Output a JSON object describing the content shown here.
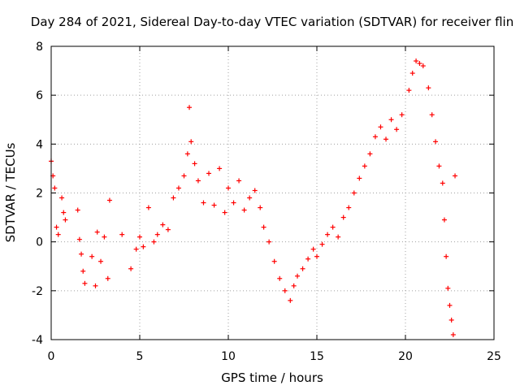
{
  "chart_data": {
    "type": "scatter",
    "title": "Day 284 of 2021, Sidereal Day-to-day VTEC variation (SDTVAR) for receiver flin",
    "xlabel": "GPS time / hours",
    "ylabel": "SDTVAR / TECUs",
    "xlim": [
      0,
      25
    ],
    "ylim": [
      -4,
      8
    ],
    "x_ticks": [
      "0",
      "5",
      "10",
      "15",
      "20",
      "25"
    ],
    "y_ticks": [
      "-4",
      "-2",
      "0",
      "2",
      "4",
      "6",
      "8"
    ],
    "grid": true,
    "marker": "+",
    "marker_color": "#ff0000",
    "series": [
      {
        "name": "SDTVAR",
        "x": [
          0.0,
          0.1,
          0.2,
          0.3,
          0.4,
          0.6,
          0.7,
          0.8,
          1.5,
          1.6,
          1.7,
          1.8,
          1.9,
          2.3,
          2.5,
          2.6,
          2.8,
          3.0,
          3.2,
          3.3,
          4.0,
          4.5,
          4.8,
          5.0,
          5.2,
          5.5,
          5.8,
          6.0,
          6.3,
          6.6,
          6.9,
          7.2,
          7.5,
          7.7,
          7.8,
          7.9,
          8.1,
          8.3,
          8.6,
          8.9,
          9.2,
          9.5,
          9.8,
          10.0,
          10.3,
          10.6,
          10.9,
          11.2,
          11.5,
          11.8,
          12.0,
          12.3,
          12.6,
          12.9,
          13.2,
          13.5,
          13.7,
          13.9,
          14.2,
          14.5,
          14.8,
          15.0,
          15.3,
          15.6,
          15.9,
          16.2,
          16.5,
          16.8,
          17.1,
          17.4,
          17.7,
          18.0,
          18.3,
          18.6,
          18.9,
          19.2,
          19.5,
          19.8,
          20.2,
          20.4,
          20.6,
          20.8,
          21.0,
          21.3,
          21.5,
          21.7,
          21.9,
          22.1,
          22.2,
          22.3,
          22.4,
          22.5,
          22.6,
          22.7,
          22.8
        ],
        "y": [
          3.3,
          2.7,
          2.2,
          0.6,
          0.3,
          1.8,
          1.2,
          0.9,
          1.3,
          0.1,
          -0.5,
          -1.2,
          -1.7,
          -0.6,
          -1.8,
          0.4,
          -0.8,
          0.2,
          -1.5,
          1.7,
          0.3,
          -1.1,
          -0.3,
          0.2,
          -0.2,
          1.4,
          0.0,
          0.3,
          0.7,
          0.5,
          1.8,
          2.2,
          2.7,
          3.6,
          5.5,
          4.1,
          3.2,
          2.5,
          1.6,
          2.8,
          1.5,
          3.0,
          1.2,
          2.2,
          1.6,
          2.5,
          1.3,
          1.8,
          2.1,
          1.4,
          0.6,
          0.0,
          -0.8,
          -1.5,
          -2.0,
          -2.4,
          -1.8,
          -1.4,
          -1.1,
          -0.7,
          -0.3,
          -0.6,
          -0.1,
          0.3,
          0.6,
          0.2,
          1.0,
          1.4,
          2.0,
          2.6,
          3.1,
          3.6,
          4.3,
          4.7,
          4.2,
          5.0,
          4.6,
          5.2,
          6.2,
          6.9,
          7.4,
          7.3,
          7.2,
          6.3,
          5.2,
          4.1,
          3.1,
          2.4,
          0.9,
          -0.6,
          -1.9,
          -2.6,
          -3.2,
          -3.8,
          2.7
        ]
      }
    ]
  }
}
